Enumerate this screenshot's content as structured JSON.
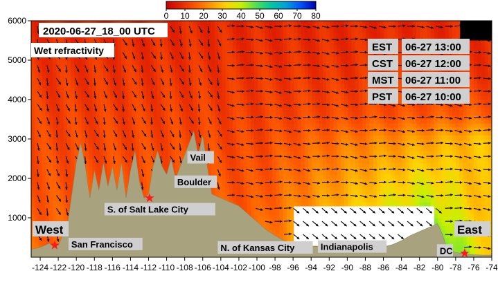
{
  "chart_data": {
    "type": "heatmap",
    "title": "2020-06-27_18_00 UTC",
    "subtitle": "Wet refractivity",
    "colorbar": {
      "ticks": [
        0,
        10,
        20,
        30,
        40,
        50,
        60,
        70,
        80
      ],
      "range": [
        0,
        80
      ],
      "colors": [
        "#c80000",
        "#e62800",
        "#ff5a00",
        "#ff9600",
        "#ffd200",
        "#c8f000",
        "#50e050",
        "#00c8a0",
        "#00a0dc",
        "#0050ff",
        "#0000b4"
      ]
    },
    "xlim": [
      -125,
      -74
    ],
    "ylim": [
      0,
      6000
    ],
    "xticks": [
      -124,
      -122,
      -120,
      -118,
      -116,
      -114,
      -112,
      -110,
      -108,
      -106,
      -104,
      -102,
      -100,
      -98,
      -96,
      -94,
      -92,
      -90,
      -88,
      -86,
      -84,
      -82,
      -80,
      -78,
      -76,
      -74
    ],
    "yticks": [
      1000,
      2000,
      3000,
      4000,
      5000,
      6000
    ],
    "terrain": [
      [
        -125,
        200
      ],
      [
        -124,
        250
      ],
      [
        -123,
        350
      ],
      [
        -122,
        300
      ],
      [
        -121,
        800
      ],
      [
        -120.5,
        1600
      ],
      [
        -120,
        2400
      ],
      [
        -119.5,
        2900
      ],
      [
        -119,
        2300
      ],
      [
        -118.5,
        1500
      ],
      [
        -118,
        2200
      ],
      [
        -117.5,
        1700
      ],
      [
        -117,
        2400
      ],
      [
        -116.5,
        1800
      ],
      [
        -116,
        2300
      ],
      [
        -115.5,
        1700
      ],
      [
        -115,
        2400
      ],
      [
        -114.5,
        1500
      ],
      [
        -114,
        2200
      ],
      [
        -113.5,
        2700
      ],
      [
        -113,
        1900
      ],
      [
        -112.5,
        1500
      ],
      [
        -112,
        1600
      ],
      [
        -111.5,
        2300
      ],
      [
        -111,
        2700
      ],
      [
        -110.5,
        2300
      ],
      [
        -110,
        2100
      ],
      [
        -109.5,
        2500
      ],
      [
        -109,
        2000
      ],
      [
        -108.5,
        2300
      ],
      [
        -108,
        2600
      ],
      [
        -107.5,
        2900
      ],
      [
        -107,
        3200
      ],
      [
        -106.5,
        2600
      ],
      [
        -106,
        3100
      ],
      [
        -105.5,
        2300
      ],
      [
        -105,
        1600
      ],
      [
        -104,
        1500
      ],
      [
        -103,
        1400
      ],
      [
        -102,
        1300
      ],
      [
        -101,
        1100
      ],
      [
        -100,
        900
      ],
      [
        -99,
        700
      ],
      [
        -98,
        550
      ],
      [
        -97,
        420
      ],
      [
        -96,
        350
      ],
      [
        -95,
        300
      ],
      [
        -94,
        280
      ],
      [
        -93,
        270
      ],
      [
        -92,
        250
      ],
      [
        -91,
        240
      ],
      [
        -90,
        200
      ],
      [
        -89,
        200
      ],
      [
        -88,
        210
      ],
      [
        -87,
        230
      ],
      [
        -86,
        260
      ],
      [
        -85,
        320
      ],
      [
        -84,
        420
      ],
      [
        -83,
        550
      ],
      [
        -82,
        650
      ],
      [
        -81,
        750
      ],
      [
        -80,
        850
      ],
      [
        -79.5,
        600
      ],
      [
        -79,
        250
      ],
      [
        -78,
        120
      ],
      [
        -77,
        80
      ],
      [
        -76,
        60
      ],
      [
        -75,
        50
      ],
      [
        -74,
        50
      ]
    ],
    "cities": [
      {
        "name": "San Francisco",
        "lon": -122.4,
        "alt": 300
      },
      {
        "name": "S. of Salt Lake City",
        "lon": -111.9,
        "alt": 1500
      },
      {
        "name": "Vail",
        "lon": -106.4,
        "alt": 2500
      },
      {
        "name": "Boulder",
        "lon": -105.3,
        "alt": 1600
      },
      {
        "name": "N. of Kansas City",
        "lon": -94.6,
        "alt": 300
      },
      {
        "name": "Indianapolis",
        "lon": -86.2,
        "alt": 200
      },
      {
        "name": "DC",
        "lon": -77.0,
        "alt": 100
      }
    ],
    "region_labels": [
      "West",
      "East"
    ],
    "time_labels": [
      {
        "zone": "EST",
        "time": "06-27 13:00"
      },
      {
        "zone": "CST",
        "time": "06-27 12:00"
      },
      {
        "zone": "MST",
        "time": "06-27 11:00"
      },
      {
        "zone": "PST",
        "time": "06-27 10:00"
      }
    ]
  }
}
